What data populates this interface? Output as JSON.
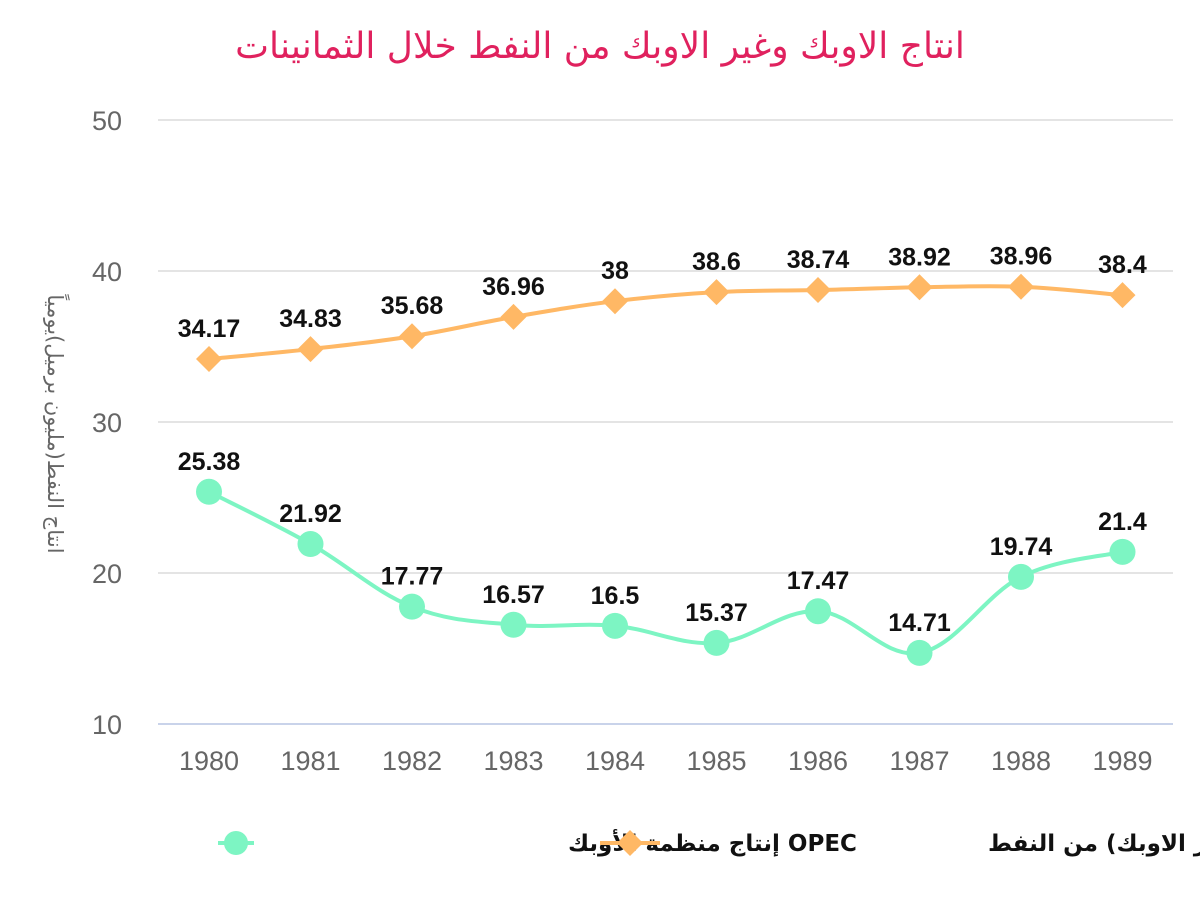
{
  "chart_data": {
    "type": "line",
    "title": "انتاج الاوبك وغير الاوبك من النفط خلال الثمانينات",
    "ylabel": "انتاج النفط(مليون برميل)يومياً",
    "xlabel": "",
    "ylim": [
      10,
      50
    ],
    "yticks": [
      10,
      20,
      30,
      40,
      50
    ],
    "grid": true,
    "legend_position": "bottom",
    "categories": [
      "1980",
      "1981",
      "1982",
      "1983",
      "1984",
      "1985",
      "1986",
      "1987",
      "1988",
      "1989"
    ],
    "series": [
      {
        "name": "انتاج (غير الاوبك) من النفط",
        "marker": "diamond",
        "color": "#ffb865",
        "values": [
          34.17,
          34.83,
          35.68,
          36.96,
          38,
          38.6,
          38.74,
          38.92,
          38.96,
          38.4
        ]
      },
      {
        "name": "OPEC إنتاج منظمة الأوبك",
        "marker": "circle",
        "color": "#7df5c3",
        "values": [
          25.38,
          21.92,
          17.77,
          16.57,
          16.5,
          15.37,
          17.47,
          14.71,
          19.74,
          21.4
        ]
      }
    ]
  }
}
